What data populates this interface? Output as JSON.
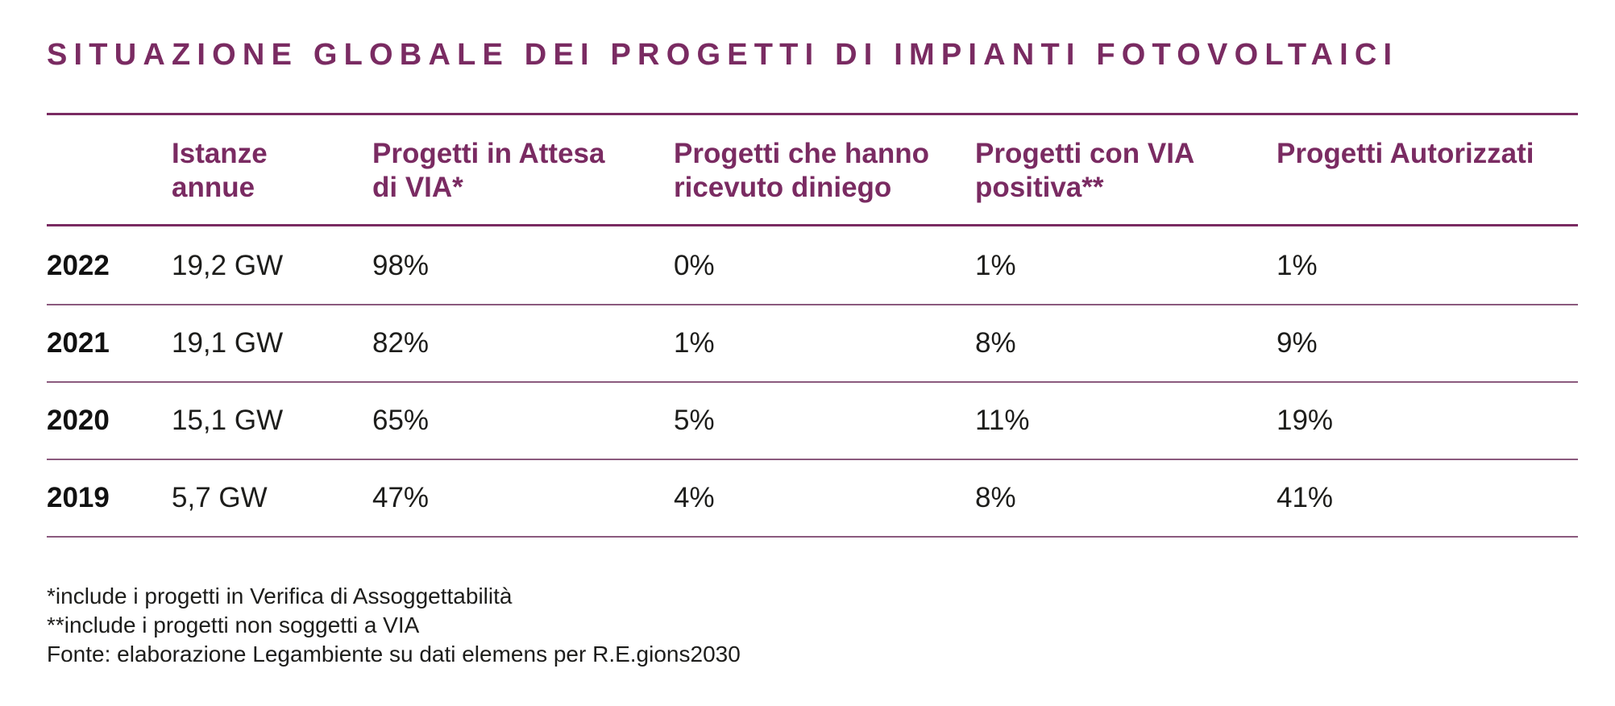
{
  "title": "SITUAZIONE GLOBALE DEI PROGETTI DI IMPIANTI FOTOVOLTAICI",
  "colors": {
    "accent": "#7a2b62",
    "text": "#1d1d1b"
  },
  "table": {
    "headers": [
      "",
      "Istanze\nannue",
      "Progetti in Attesa\ndi VIA*",
      "Progetti che hanno\nricevuto diniego",
      "Progetti con VIA\npositiva**",
      "Progetti Autorizzati"
    ],
    "rows": [
      [
        "2022",
        "19,2 GW",
        "98%",
        "0%",
        "1%",
        "1%"
      ],
      [
        "2021",
        "19,1 GW",
        "82%",
        "1%",
        "8%",
        "9%"
      ],
      [
        "2020",
        "15,1 GW",
        "65%",
        "5%",
        "11%",
        "19%"
      ],
      [
        "2019",
        "5,7 GW",
        "47%",
        "4%",
        "8%",
        "41%"
      ]
    ]
  },
  "notes": [
    "*include i progetti in Verifica di Assoggettabilità",
    "**include i progetti non soggetti a VIA",
    "Fonte: elaborazione Legambiente su dati elemens per R.E.gions2030"
  ]
}
